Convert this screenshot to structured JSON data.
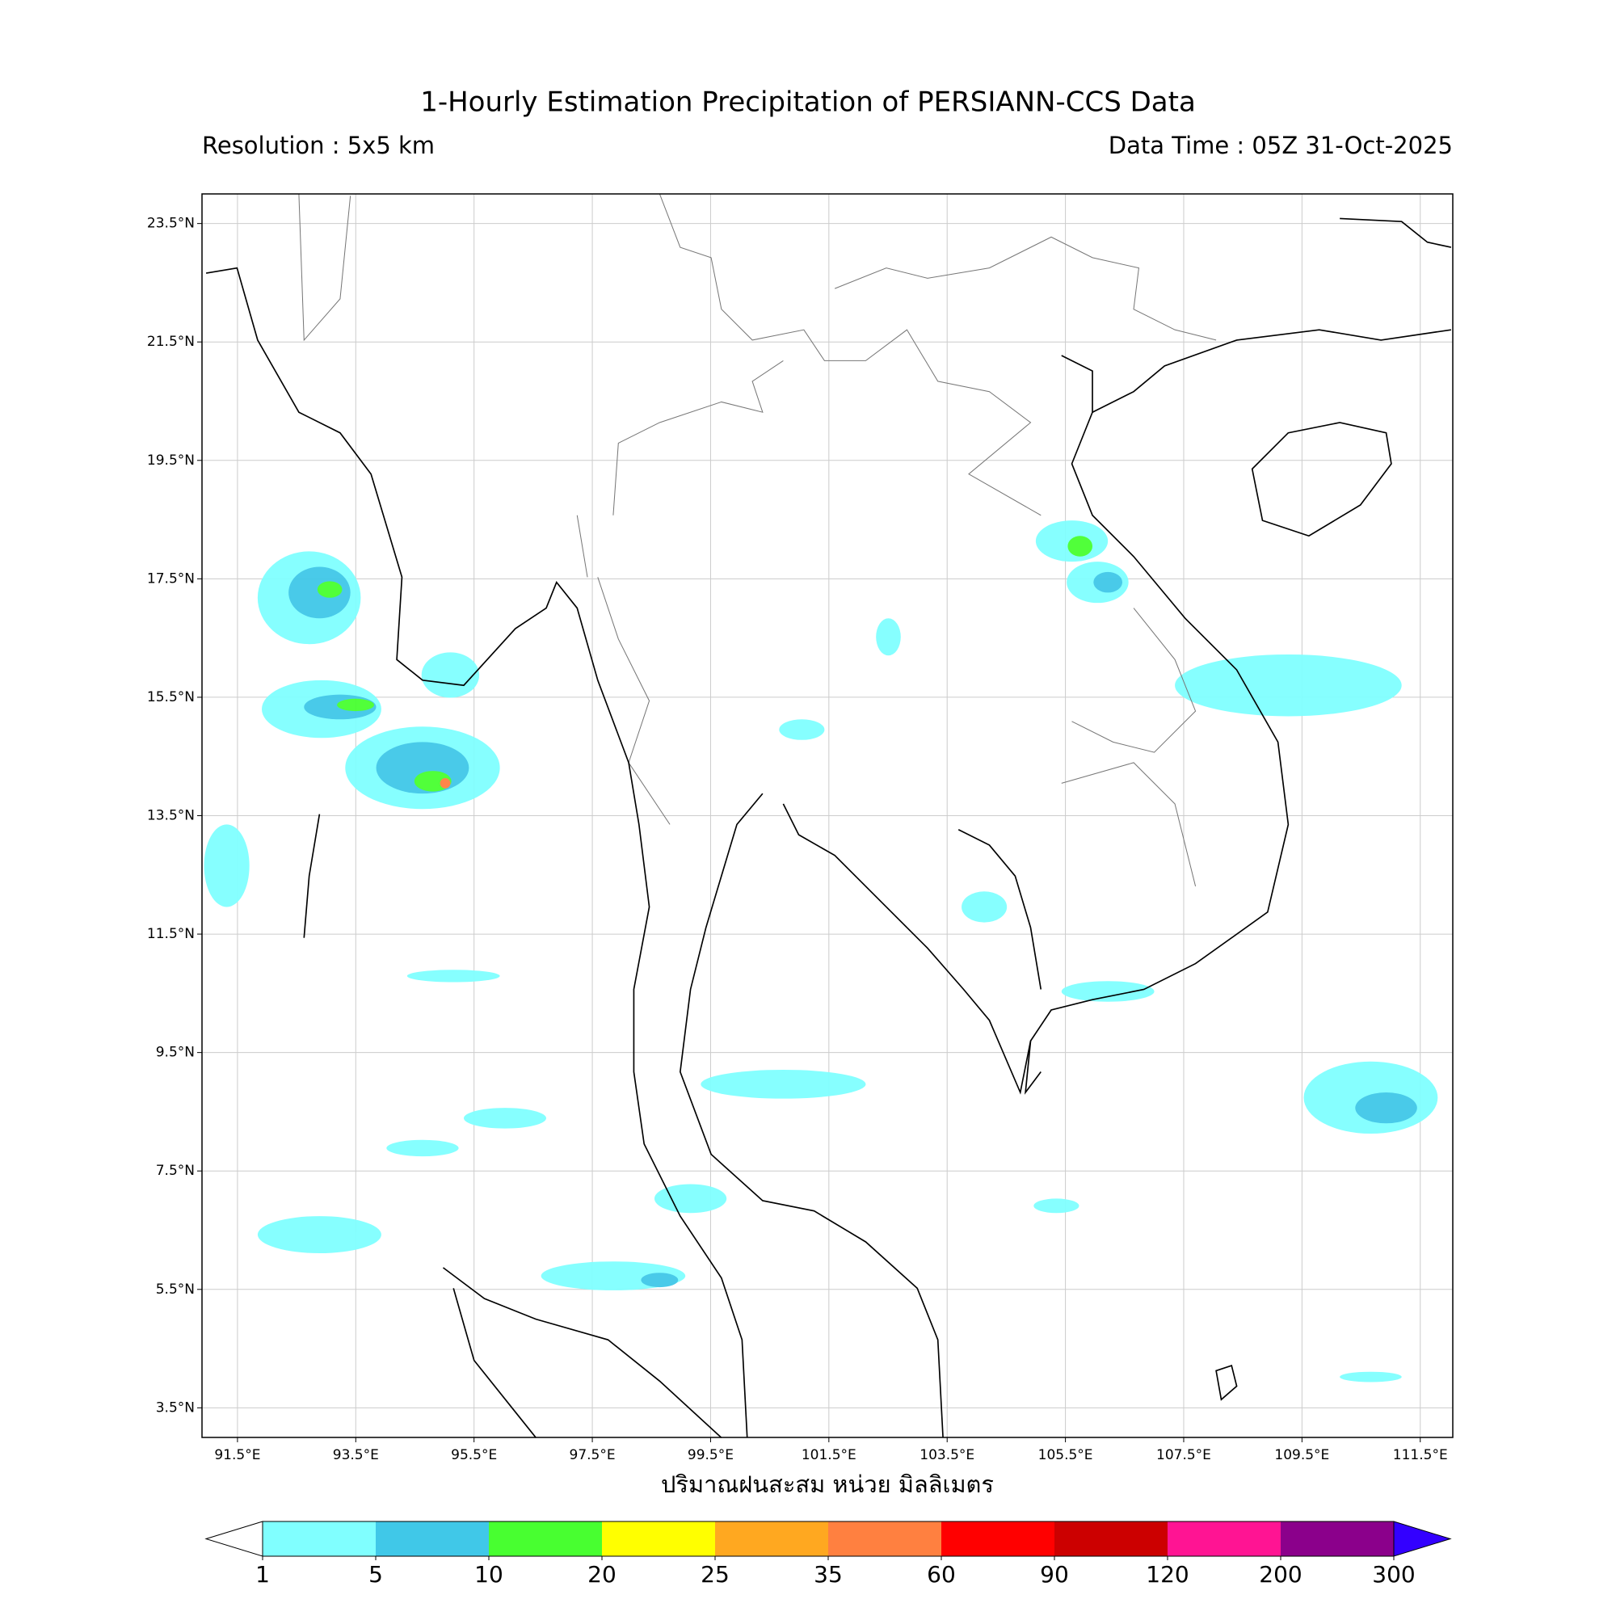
{
  "title": "1-Hourly Estimation Precipitation of PERSIANN-CCS Data",
  "resolution": "Resolution : 5x5 km",
  "data_time": "Data Time : 05Z 31-Oct-2025",
  "x_label": "ปริมาณฝนสะสม หน่วย มิลลิเมตร",
  "map": {
    "lonlim": [
      90.9,
      112.05
    ],
    "latlim": [
      3.0,
      24.0
    ],
    "lonticks": [
      {
        "value": 91.5,
        "label": "91.5°E"
      },
      {
        "value": 93.5,
        "label": "93.5°E"
      },
      {
        "value": 95.5,
        "label": "95.5°E"
      },
      {
        "value": 97.5,
        "label": "97.5°E"
      },
      {
        "value": 99.5,
        "label": "99.5°E"
      },
      {
        "value": 101.5,
        "label": "101.5°E"
      },
      {
        "value": 103.5,
        "label": "103.5°E"
      },
      {
        "value": 105.5,
        "label": "105.5°E"
      },
      {
        "value": 107.5,
        "label": "107.5°E"
      },
      {
        "value": 109.5,
        "label": "109.5°E"
      },
      {
        "value": 111.5,
        "label": "111.5°E"
      }
    ],
    "latticks": [
      {
        "value": 23.5,
        "label": "23.5°N"
      },
      {
        "value": 21.5,
        "label": "21.5°N"
      },
      {
        "value": 19.5,
        "label": "19.5°N"
      },
      {
        "value": 17.5,
        "label": "17.5°N"
      },
      {
        "value": 15.5,
        "label": "15.5°N"
      },
      {
        "value": 13.5,
        "label": "13.5°N"
      },
      {
        "value": 11.5,
        "label": "11.5°N"
      },
      {
        "value": 9.5,
        "label": "9.5°N"
      },
      {
        "value": 7.5,
        "label": "7.5°N"
      },
      {
        "value": 5.5,
        "label": "5.5°N"
      },
      {
        "value": 3.5,
        "label": "3.5°N"
      }
    ],
    "grid": true
  },
  "colorbar": {
    "levels": [
      1,
      5,
      10,
      20,
      25,
      35,
      60,
      90,
      120,
      200,
      300
    ],
    "colors": [
      "#80ffff",
      "#40c8e8",
      "#48ff30",
      "#ffff00",
      "#ffa820",
      "#ff8040",
      "#ff0000",
      "#cc0000",
      "#ff1493",
      "#8b008b"
    ],
    "under_color": "#ffffff",
    "over_color": "#3300ff"
  }
}
